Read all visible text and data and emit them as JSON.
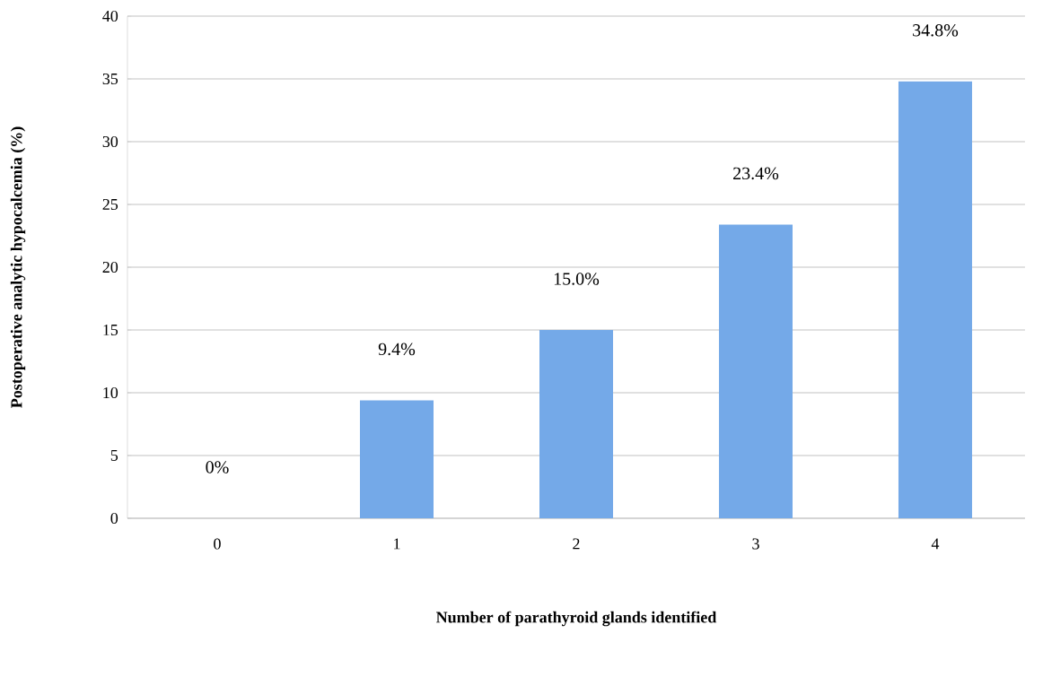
{
  "chart_data": {
    "type": "bar",
    "xlabel": "Number of parathyroid glands identified",
    "ylabel": "Postoperative analytic  hypocalcemia (%)",
    "categories": [
      "0",
      "1",
      "2",
      "3",
      "4"
    ],
    "values": [
      0,
      9.4,
      15.0,
      23.4,
      34.8
    ],
    "value_labels": [
      "0%",
      "9.4%",
      "15.0%",
      "23.4%",
      "34.8%"
    ],
    "color": "#74a9e8",
    "ylim": [
      0,
      40
    ],
    "yticks": [
      0,
      5,
      10,
      15,
      20,
      25,
      30,
      35,
      40
    ],
    "grid": "y"
  }
}
